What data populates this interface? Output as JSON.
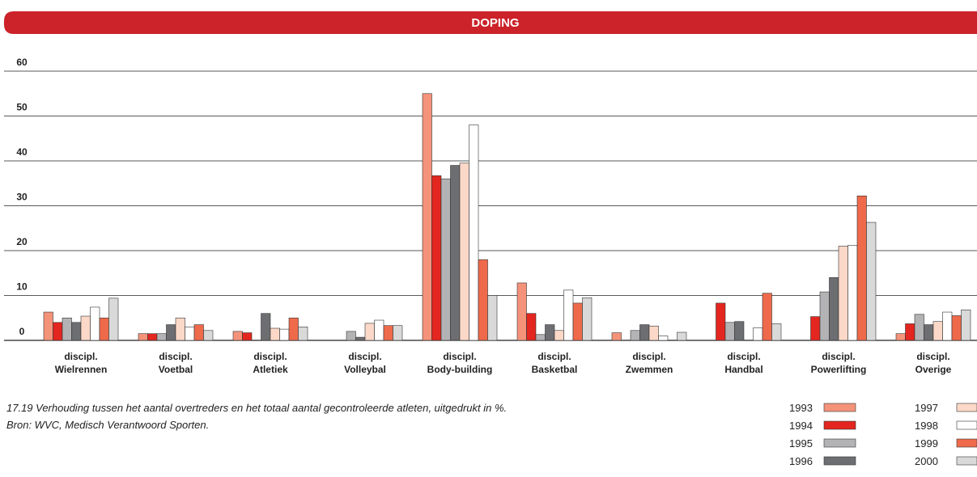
{
  "chart_data": {
    "type": "bar",
    "title": "DOPING",
    "categories": [
      [
        "discipl.",
        "Wielrennen"
      ],
      [
        "discipl.",
        "Voetbal"
      ],
      [
        "discipl.",
        "Atletiek"
      ],
      [
        "discipl.",
        "Volleybal"
      ],
      [
        "discipl.",
        "Body-building"
      ],
      [
        "discipl.",
        "Basketbal"
      ],
      [
        "discipl.",
        "Zwemmen"
      ],
      [
        "discipl.",
        "Handbal"
      ],
      [
        "discipl.",
        "Powerlifting"
      ],
      [
        "discipl.",
        "Overige"
      ]
    ],
    "series": [
      {
        "name": "1993",
        "color": "#f4937a",
        "values": [
          6.3,
          1.5,
          2,
          0,
          55,
          12.8,
          1.7,
          0,
          0,
          1.5
        ]
      },
      {
        "name": "1994",
        "color": "#e3261f",
        "values": [
          4,
          1.5,
          1.7,
          0,
          36.7,
          6,
          0,
          8.3,
          5.3,
          3.7
        ]
      },
      {
        "name": "1995",
        "color": "#b3b3b5",
        "values": [
          5,
          1.5,
          0,
          2,
          36,
          1.3,
          2.2,
          4,
          10.8,
          5.8
        ]
      },
      {
        "name": "1996",
        "color": "#6d6e71",
        "values": [
          4,
          3.5,
          6,
          0.7,
          39,
          3.5,
          3.5,
          4.2,
          14,
          3.5
        ]
      },
      {
        "name": "1997",
        "color": "#fcd8c8",
        "values": [
          5.4,
          5,
          2.7,
          3.8,
          39.5,
          2.2,
          3.2,
          0,
          21,
          4.2
        ]
      },
      {
        "name": "1998",
        "color": "#ffffff",
        "values": [
          7.4,
          3,
          2.5,
          4.5,
          48,
          11.2,
          1,
          2.8,
          21.2,
          6.3
        ]
      },
      {
        "name": "1999",
        "color": "#ee6a4b",
        "values": [
          5,
          3.5,
          5,
          3.3,
          18,
          8.3,
          0,
          10.5,
          32.2,
          5.5
        ]
      },
      {
        "name": "2000",
        "color": "#d9d9d9",
        "values": [
          9.4,
          2.2,
          3,
          3.3,
          10,
          9.5,
          1.8,
          3.7,
          26.3,
          6.8
        ]
      }
    ],
    "ylim": [
      0,
      60
    ],
    "yticks": [
      0,
      10,
      20,
      30,
      40,
      50,
      60
    ],
    "grid": true,
    "caption": "17.19 Verhouding tussen het aantal overtreders en het totaal aantal gecontroleerde atleten, uitgedrukt in %.",
    "source": "Bron: WVC, Medisch Verantwoord Sporten."
  }
}
